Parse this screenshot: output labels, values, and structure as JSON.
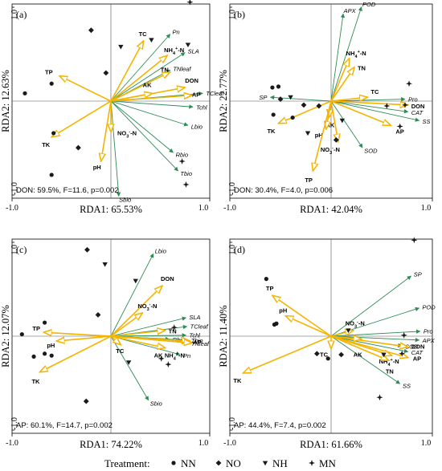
{
  "colors": {
    "green": "#2e8b57",
    "yellow": "#f5b400",
    "frame": "#000000"
  },
  "legend": {
    "title": "Treatment:",
    "items": [
      {
        "label": "NN",
        "marker": "circle"
      },
      {
        "label": "NO",
        "marker": "diamond"
      },
      {
        "label": "NH",
        "marker": "triangle-down"
      },
      {
        "label": "MN",
        "marker": "star4"
      }
    ]
  },
  "chart_data": [
    {
      "type": "scatter",
      "panel_label": "(a)",
      "xlabel": "RDA1: 65.53%",
      "ylabel": "RDA2: 12.63%",
      "xlim": [
        -1.0,
        1.0
      ],
      "ylim": [
        -1.0,
        1.0
      ],
      "x_ticks": [
        "-1.0",
        "1.0"
      ],
      "y_ticks": [
        "1.0",
        "-1.0"
      ],
      "annotation": "DON: 59.5%, F=11.6, p=0.002",
      "response_vectors": [
        {
          "label": "Pn",
          "x": 0.6,
          "y": 0.69,
          "italic": true
        },
        {
          "label": "SLA",
          "x": 0.75,
          "y": 0.5,
          "italic": true
        },
        {
          "label": "TNleaf",
          "x": 0.6,
          "y": 0.32,
          "italic": true
        },
        {
          "label": "TCleaf",
          "x": 0.93,
          "y": 0.08,
          "italic": true
        },
        {
          "label": "Tchl",
          "x": 0.83,
          "y": -0.06,
          "italic": true
        },
        {
          "label": "Lbio",
          "x": 0.78,
          "y": -0.25,
          "italic": true
        },
        {
          "label": "Rbio",
          "x": 0.63,
          "y": -0.53,
          "italic": true
        },
        {
          "label": "Tbio",
          "x": 0.68,
          "y": -0.72,
          "italic": true
        },
        {
          "label": "Sbio",
          "x": 0.08,
          "y": -0.98,
          "italic": true
        }
      ],
      "env_vectors": [
        {
          "label": "TP",
          "x": -0.52,
          "y": 0.26,
          "label_dx": -18,
          "label_dy": -2
        },
        {
          "label": "TK",
          "x": -0.6,
          "y": -0.37,
          "label_dx": -12,
          "label_dy": 12
        },
        {
          "label": "pH",
          "x": -0.1,
          "y": -0.62,
          "label_dx": -10,
          "label_dy": 10
        },
        {
          "label": "TC",
          "x": 0.33,
          "y": 0.62,
          "label_dx": -6,
          "label_dy": -6
        },
        {
          "label": "NH4+-N",
          "x": 0.57,
          "y": 0.47,
          "label_dx": -4,
          "label_dy": -4
        },
        {
          "label": "TN",
          "x": 0.6,
          "y": 0.3,
          "label_dx": -12,
          "label_dy": 0
        },
        {
          "label": "DON",
          "x": 0.75,
          "y": 0.14,
          "label_dx": 0,
          "label_dy": -6
        },
        {
          "label": "AK",
          "x": 0.42,
          "y": 0.08,
          "label_dx": -12,
          "label_dy": -8
        },
        {
          "label": "AP",
          "x": 0.82,
          "y": 0.06,
          "label_dx": 0,
          "label_dy": 2
        },
        {
          "label": "NO3--N",
          "x": 0.0,
          "y": -0.32,
          "label_dx": 8,
          "label_dy": 4
        }
      ],
      "samples": [
        {
          "treatment": "NN",
          "x": -0.87,
          "y": 0.08
        },
        {
          "treatment": "NN",
          "x": -0.6,
          "y": 0.18
        },
        {
          "treatment": "NN",
          "x": -0.6,
          "y": -0.76
        },
        {
          "treatment": "NN",
          "x": -0.58,
          "y": -0.33
        },
        {
          "treatment": "NO",
          "x": -0.2,
          "y": 0.73
        },
        {
          "treatment": "NO",
          "x": -0.05,
          "y": 0.29
        },
        {
          "treatment": "NO",
          "x": -0.33,
          "y": -0.48
        },
        {
          "treatment": "NH",
          "x": 0.1,
          "y": 0.56
        },
        {
          "treatment": "NH",
          "x": 0.41,
          "y": 0.63
        },
        {
          "treatment": "NH",
          "x": 0.78,
          "y": 0.58
        },
        {
          "treatment": "MN",
          "x": 0.8,
          "y": 1.02
        },
        {
          "treatment": "MN",
          "x": 0.72,
          "y": -0.62
        },
        {
          "treatment": "MN",
          "x": 0.76,
          "y": -0.86
        }
      ]
    },
    {
      "type": "scatter",
      "panel_label": "(b)",
      "xlabel": "RDA1: 42.04%",
      "ylabel": "RDA2: 22.77%",
      "xlim": [
        -1.0,
        1.0
      ],
      "ylim": [
        -1.0,
        1.0
      ],
      "x_ticks": [
        "-1.0",
        "1.0"
      ],
      "y_ticks": [
        "1.0",
        "-1.0"
      ],
      "annotation": "DON: 30.4%, F=4.0, p=0.006",
      "response_vectors": [
        {
          "label": "APX",
          "x": 0.12,
          "y": 0.9,
          "italic": true
        },
        {
          "label": "POD",
          "x": 0.3,
          "y": 0.97,
          "italic": true
        },
        {
          "label": "SP",
          "x": -0.6,
          "y": 0.04,
          "italic": true
        },
        {
          "label": "Pro",
          "x": 0.73,
          "y": 0.02,
          "italic": true
        },
        {
          "label": "CAT",
          "x": 0.76,
          "y": -0.11,
          "italic": true
        },
        {
          "label": "SS",
          "x": 0.87,
          "y": -0.2,
          "italic": true
        },
        {
          "label": "SOD",
          "x": 0.31,
          "y": -0.48,
          "italic": true
        }
      ],
      "env_vectors": [
        {
          "label": "NH4+-N",
          "x": 0.18,
          "y": 0.44,
          "label_dx": -4,
          "label_dy": -4
        },
        {
          "label": "TN",
          "x": 0.23,
          "y": 0.35,
          "label_dx": 4,
          "label_dy": 4
        },
        {
          "label": "TC",
          "x": 0.36,
          "y": 0.04,
          "label_dx": 4,
          "label_dy": -4
        },
        {
          "label": "DON",
          "x": 0.76,
          "y": -0.04,
          "label_dx": 4,
          "label_dy": 4
        },
        {
          "label": "AP",
          "x": 0.59,
          "y": -0.25,
          "label_dx": 6,
          "label_dy": 10
        },
        {
          "label": "AK",
          "x": -0.02,
          "y": -0.17,
          "label_dx": -4,
          "label_dy": 12
        },
        {
          "label": "pH",
          "x": -0.05,
          "y": -0.29,
          "label_dx": -14,
          "label_dy": 10
        },
        {
          "label": "NO3--N",
          "x": 0.07,
          "y": -0.42,
          "label_dx": -22,
          "label_dy": 12
        },
        {
          "label": "TK",
          "x": -0.52,
          "y": -0.23,
          "label_dx": -14,
          "label_dy": 12
        },
        {
          "label": "TP",
          "x": -0.18,
          "y": -0.72,
          "label_dx": -10,
          "label_dy": 14
        }
      ],
      "samples": [
        {
          "treatment": "NN",
          "x": -0.58,
          "y": 0.14
        },
        {
          "treatment": "NN",
          "x": -0.52,
          "y": 0.15
        },
        {
          "treatment": "NN",
          "x": -0.57,
          "y": -0.14
        },
        {
          "treatment": "NN",
          "x": -0.38,
          "y": -0.17
        },
        {
          "treatment": "NO",
          "x": -0.5,
          "y": 0.02
        },
        {
          "treatment": "NO",
          "x": -0.27,
          "y": -0.04
        },
        {
          "treatment": "NO",
          "x": -0.12,
          "y": -0.05
        },
        {
          "treatment": "NO",
          "x": 0.05,
          "y": -0.4
        },
        {
          "treatment": "NH",
          "x": -0.4,
          "y": 0.04
        },
        {
          "treatment": "NH",
          "x": -0.23,
          "y": -0.33
        },
        {
          "treatment": "NH",
          "x": 0.11,
          "y": -0.2
        },
        {
          "treatment": "MN",
          "x": 0.55,
          "y": -0.05
        },
        {
          "treatment": "MN",
          "x": 0.73,
          "y": -0.04
        },
        {
          "treatment": "MN",
          "x": 0.77,
          "y": 0.18
        },
        {
          "treatment": "MN",
          "x": 0.68,
          "y": -0.26
        }
      ]
    },
    {
      "type": "scatter",
      "panel_label": "(c)",
      "xlabel": "RDA1: 74.22%",
      "ylabel": "RDA2: 12.07%",
      "xlim": [
        -1.0,
        1.0
      ],
      "ylim": [
        -1.0,
        1.0
      ],
      "x_ticks": [
        "-1.0",
        "1.0"
      ],
      "y_ticks": [
        "1.0",
        "-1.0"
      ],
      "annotation": "AP: 60.1%, F=14.7, p=0.002",
      "response_vectors": [
        {
          "label": "Lbio",
          "x": 0.43,
          "y": 0.85,
          "italic": true
        },
        {
          "label": "SLA",
          "x": 0.76,
          "y": 0.19,
          "italic": true
        },
        {
          "label": "TCleaf",
          "x": 0.77,
          "y": 0.1,
          "italic": true
        },
        {
          "label": "Tchl",
          "x": 0.76,
          "y": 0.01,
          "italic": true
        },
        {
          "label": "Rbio",
          "x": 0.59,
          "y": -0.03,
          "italic": true
        },
        {
          "label": "Tbio",
          "x": 0.78,
          "y": -0.04,
          "italic": true
        },
        {
          "label": "TNleaf",
          "x": 0.78,
          "y": -0.07,
          "italic": true
        },
        {
          "label": "Pn",
          "x": 0.7,
          "y": -0.19,
          "italic": true
        },
        {
          "label": "Sbio",
          "x": 0.38,
          "y": -0.66,
          "italic": true
        }
      ],
      "env_vectors": [
        {
          "label": "DON",
          "x": 0.52,
          "y": 0.52,
          "label_dx": -2,
          "label_dy": -6
        },
        {
          "label": "NO3--N",
          "x": 0.32,
          "y": 0.24,
          "label_dx": -6,
          "label_dy": -6
        },
        {
          "label": "TN",
          "x": 0.55,
          "y": 0.06,
          "label_dx": 4,
          "label_dy": 4
        },
        {
          "label": "TP",
          "x": -0.68,
          "y": 0.04,
          "label_dx": -14,
          "label_dy": -2
        },
        {
          "label": "pH",
          "x": -0.55,
          "y": -0.05,
          "label_dx": -12,
          "label_dy": 8
        },
        {
          "label": "TK",
          "x": -0.72,
          "y": -0.37,
          "label_dx": -10,
          "label_dy": 14
        },
        {
          "label": "TC",
          "x": 0.1,
          "y": -0.09,
          "label_dx": -6,
          "label_dy": 10
        },
        {
          "label": "AK",
          "x": 0.55,
          "y": -0.12,
          "label_dx": -14,
          "label_dy": 12
        },
        {
          "label": "AP",
          "x": 0.8,
          "y": -0.05,
          "label_dx": 4,
          "label_dy": 4
        },
        {
          "label": "NH4+-N",
          "x": 0.82,
          "y": -0.07,
          "label_dx": -34,
          "label_dy": 18
        }
      ],
      "samples": [
        {
          "treatment": "NN",
          "x": -0.9,
          "y": 0.02
        },
        {
          "treatment": "NN",
          "x": -0.67,
          "y": 0.14
        },
        {
          "treatment": "NN",
          "x": -0.67,
          "y": -0.18
        },
        {
          "treatment": "NN",
          "x": -0.78,
          "y": -0.21
        },
        {
          "treatment": "NN",
          "x": -0.6,
          "y": -0.2
        },
        {
          "treatment": "NO",
          "x": -0.24,
          "y": 0.89
        },
        {
          "treatment": "NO",
          "x": -0.13,
          "y": 0.22
        },
        {
          "treatment": "NO",
          "x": -0.25,
          "y": -0.67
        },
        {
          "treatment": "NH",
          "x": -0.06,
          "y": 0.74
        },
        {
          "treatment": "NH",
          "x": 0.25,
          "y": 0.57
        },
        {
          "treatment": "NH",
          "x": 0.18,
          "y": -0.27
        },
        {
          "treatment": "MN",
          "x": 0.64,
          "y": 0.09
        },
        {
          "treatment": "MN",
          "x": 0.51,
          "y": -0.23
        },
        {
          "treatment": "MN",
          "x": 0.58,
          "y": -0.29
        }
      ]
    },
    {
      "type": "scatter",
      "panel_label": "(d)",
      "xlabel": "RDA1: 61.66%",
      "ylabel": "RDA2: 11.40%",
      "xlim": [
        -1.0,
        1.0
      ],
      "ylim": [
        -1.0,
        1.0
      ],
      "x_ticks": [
        "-1.0",
        "1.0"
      ],
      "y_ticks": [
        "1.0",
        "-1.0"
      ],
      "annotation": "AP: 44.4%, F=7.4, p=0.002",
      "response_vectors": [
        {
          "label": "SP",
          "x": 0.79,
          "y": 0.62,
          "italic": true
        },
        {
          "label": "POD",
          "x": 0.87,
          "y": 0.29,
          "italic": true
        },
        {
          "label": "Pro",
          "x": 0.88,
          "y": 0.05,
          "italic": true
        },
        {
          "label": "APX",
          "x": 0.87,
          "y": -0.04,
          "italic": true
        },
        {
          "label": "SOD",
          "x": 0.7,
          "y": -0.1,
          "italic": true
        },
        {
          "label": "CAT",
          "x": 0.76,
          "y": -0.16,
          "italic": true
        },
        {
          "label": "SS",
          "x": 0.68,
          "y": -0.49,
          "italic": true
        }
      ],
      "env_vectors": [
        {
          "label": "TP",
          "x": -0.58,
          "y": 0.42,
          "label_dx": -8,
          "label_dy": -6
        },
        {
          "label": "pH",
          "x": -0.45,
          "y": 0.21,
          "label_dx": -8,
          "label_dy": -4
        },
        {
          "label": "NO3--N",
          "x": 0.22,
          "y": 0.06,
          "label_dx": -10,
          "label_dy": -6
        },
        {
          "label": "DON",
          "x": 0.76,
          "y": -0.11,
          "label_dx": 4,
          "label_dy": 2
        },
        {
          "label": "AP",
          "x": 0.76,
          "y": -0.22,
          "label_dx": 6,
          "label_dy": 4
        },
        {
          "label": "NH4+-N",
          "x": 0.6,
          "y": -0.2,
          "label_dx": -16,
          "label_dy": 10
        },
        {
          "label": "TN",
          "x": 0.57,
          "y": -0.25,
          "label_dx": -4,
          "label_dy": 16
        },
        {
          "label": "AK",
          "x": 0.3,
          "y": -0.03,
          "label_dx": -10,
          "label_dy": 22
        },
        {
          "label": "TC",
          "x": 0.0,
          "y": -0.13,
          "label_dx": -14,
          "label_dy": 10
        },
        {
          "label": "TK",
          "x": -0.87,
          "y": -0.38,
          "label_dx": -12,
          "label_dy": 12
        }
      ],
      "samples": [
        {
          "treatment": "NN",
          "x": -0.64,
          "y": 0.59
        },
        {
          "treatment": "NN",
          "x": -0.56,
          "y": 0.12
        },
        {
          "treatment": "NN",
          "x": -0.54,
          "y": 0.13
        },
        {
          "treatment": "NN",
          "x": -0.03,
          "y": -0.23
        },
        {
          "treatment": "NO",
          "x": -0.14,
          "y": -0.18
        },
        {
          "treatment": "NO",
          "x": 0.1,
          "y": -0.19
        },
        {
          "treatment": "NH",
          "x": 0.17,
          "y": 0.06
        },
        {
          "treatment": "NH",
          "x": 0.52,
          "y": -0.19
        },
        {
          "treatment": "MN",
          "x": 0.82,
          "y": 0.99
        },
        {
          "treatment": "MN",
          "x": 0.72,
          "y": 0.01
        },
        {
          "treatment": "MN",
          "x": 0.7,
          "y": -0.18
        },
        {
          "treatment": "MN",
          "x": 0.48,
          "y": -0.63
        }
      ]
    }
  ]
}
